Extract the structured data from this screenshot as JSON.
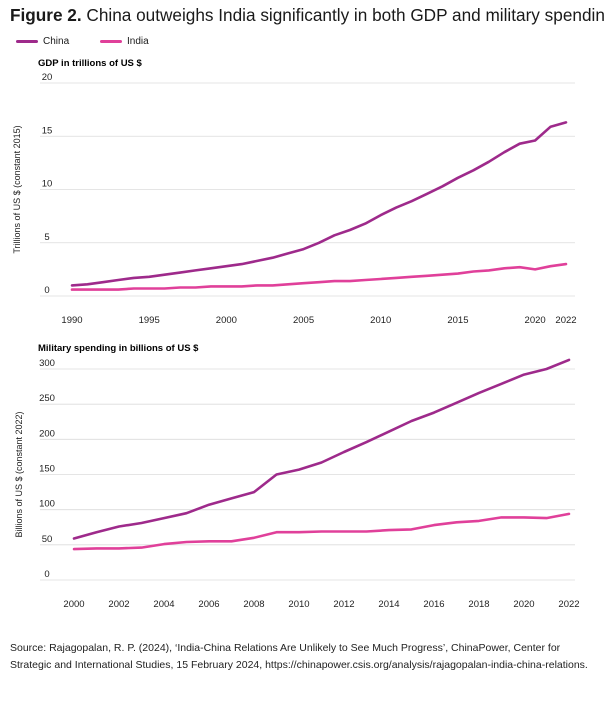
{
  "figure": {
    "label": "Figure 2.",
    "title": "China outweighs India significantly in both GDP and military spending",
    "source": "Source: Rajagopalan, R. P. (2024), ‘India-China Relations Are Unlikely to See Much Progress’, ChinaPower, Center for Strategic and International Studies, 15 February 2024, https://chinapower.csis.org/analysis/rajagopalan-india-china-relations."
  },
  "legend": [
    {
      "name": "China",
      "color": "#9e2a8b"
    },
    {
      "name": "India",
      "color": "#e0409a"
    }
  ],
  "chart_data": [
    {
      "type": "line",
      "title": "GDP in trillions of US $",
      "ylabel": "Trillions of US $ (constant 2015)",
      "xlabel": "",
      "ylim": [
        0,
        20
      ],
      "yticks": [
        0,
        5,
        10,
        15,
        20
      ],
      "xlim": [
        1990,
        2022
      ],
      "xticks": [
        1990,
        1995,
        2000,
        2005,
        2010,
        2015,
        2020,
        2022
      ],
      "grid": true,
      "x": [
        1990,
        1991,
        1992,
        1993,
        1994,
        1995,
        1996,
        1997,
        1998,
        1999,
        2000,
        2001,
        2002,
        2003,
        2004,
        2005,
        2006,
        2007,
        2008,
        2009,
        2010,
        2011,
        2012,
        2013,
        2014,
        2015,
        2016,
        2017,
        2018,
        2019,
        2020,
        2021,
        2022
      ],
      "series": [
        {
          "name": "China",
          "color": "#9e2a8b",
          "values": [
            1.0,
            1.1,
            1.3,
            1.5,
            1.7,
            1.8,
            2.0,
            2.2,
            2.4,
            2.6,
            2.8,
            3.0,
            3.3,
            3.6,
            4.0,
            4.4,
            5.0,
            5.7,
            6.2,
            6.8,
            7.6,
            8.3,
            8.9,
            9.6,
            10.3,
            11.1,
            11.8,
            12.6,
            13.5,
            14.3,
            14.6,
            15.9,
            16.3
          ]
        },
        {
          "name": "India",
          "color": "#e0409a",
          "values": [
            0.6,
            0.6,
            0.6,
            0.6,
            0.7,
            0.7,
            0.7,
            0.8,
            0.8,
            0.9,
            0.9,
            0.9,
            1.0,
            1.0,
            1.1,
            1.2,
            1.3,
            1.4,
            1.4,
            1.5,
            1.6,
            1.7,
            1.8,
            1.9,
            2.0,
            2.1,
            2.3,
            2.4,
            2.6,
            2.7,
            2.5,
            2.8,
            3.0
          ]
        }
      ]
    },
    {
      "type": "line",
      "title": "Military spending in billions of US $",
      "ylabel": "Billions of US $ (constant 2022)",
      "xlabel": "",
      "ylim": [
        0,
        300
      ],
      "yticks": [
        0,
        50,
        100,
        150,
        200,
        250,
        300
      ],
      "xlim": [
        2000,
        2022
      ],
      "xticks": [
        2000,
        2002,
        2004,
        2006,
        2008,
        2010,
        2012,
        2014,
        2016,
        2018,
        2020,
        2022
      ],
      "grid": true,
      "x": [
        2000,
        2001,
        2002,
        2003,
        2004,
        2005,
        2006,
        2007,
        2008,
        2009,
        2010,
        2011,
        2012,
        2013,
        2014,
        2015,
        2016,
        2017,
        2018,
        2019,
        2020,
        2021,
        2022
      ],
      "series": [
        {
          "name": "China",
          "color": "#9e2a8b",
          "values": [
            59,
            68,
            76,
            81,
            88,
            95,
            107,
            116,
            125,
            150,
            157,
            167,
            182,
            196,
            211,
            226,
            238,
            252,
            266,
            279,
            292,
            300,
            313
          ]
        },
        {
          "name": "India",
          "color": "#e0409a",
          "values": [
            44,
            45,
            45,
            46,
            51,
            54,
            55,
            55,
            60,
            68,
            68,
            69,
            69,
            69,
            71,
            72,
            78,
            82,
            84,
            89,
            89,
            88,
            94
          ]
        }
      ]
    }
  ]
}
